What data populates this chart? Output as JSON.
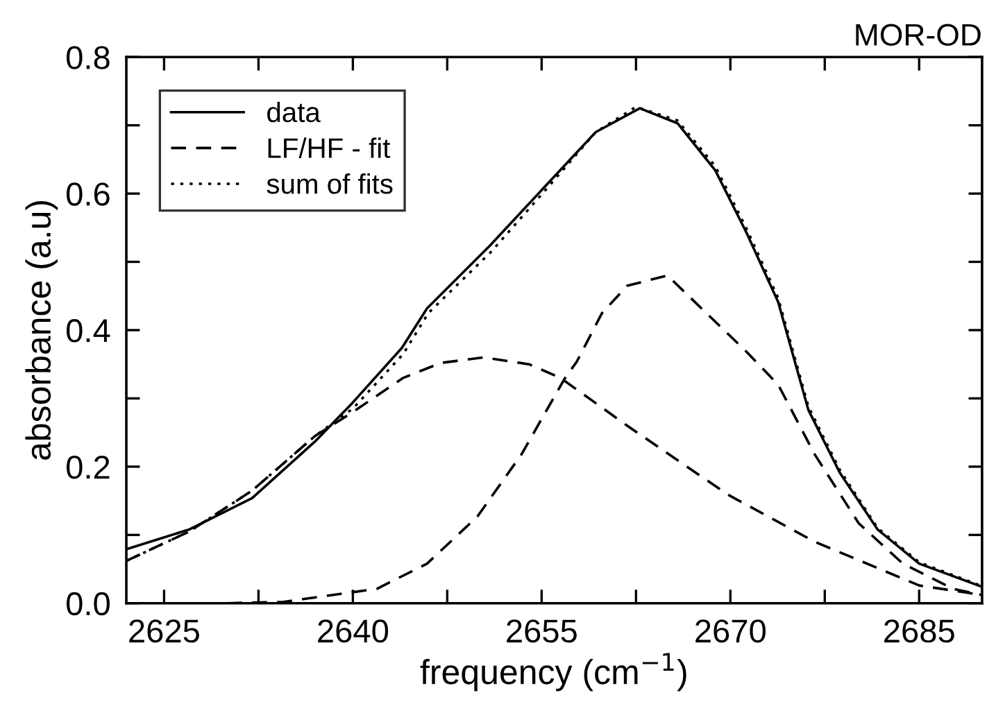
{
  "chart_data": {
    "type": "line",
    "title": "MOR-OD",
    "xlabel": "frequency (cm$^{−1}$)",
    "ylabel": "absorbance (a.u)",
    "xlim": [
      2622,
      2690
    ],
    "ylim": [
      0,
      0.8
    ],
    "xticks": [
      2625,
      {
        "value": 2632.5,
        "label": null
      },
      2640,
      {
        "value": 2647.5,
        "label": null
      },
      2655,
      {
        "value": 2662.5,
        "label": null
      },
      2670,
      {
        "value": 2677.5,
        "label": null
      },
      2685
    ],
    "yticks": [
      {
        "value": 0,
        "label": "0.0"
      },
      {
        "value": 0.1,
        "label": null
      },
      0.2,
      {
        "value": 0.3,
        "label": null
      },
      0.4,
      {
        "value": 0.5,
        "label": null
      },
      0.6,
      {
        "value": 0.7,
        "label": null
      },
      0.8
    ],
    "grid": false,
    "legend": "top left",
    "series": [
      {
        "name": "data",
        "color": "#000000",
        "line_style": "solid",
        "x": [
          2622,
          2627,
          2632,
          2637,
          2639.9,
          2643.9,
          2645.9,
          2650.9,
          2655.3,
          2659.3,
          2662.8,
          2665.8,
          2668.8,
          2671.3,
          2673.8,
          2676.2,
          2678.7,
          2681.7,
          2685,
          2690
        ],
        "values": [
          0.079,
          0.108,
          0.154,
          0.237,
          0.292,
          0.374,
          0.432,
          0.524,
          0.611,
          0.69,
          0.725,
          0.703,
          0.634,
          0.542,
          0.441,
          0.283,
          0.191,
          0.108,
          0.058,
          0.024
        ]
      },
      {
        "name": "LF/HF - fit",
        "color": "#000000",
        "line_style": "dashed",
        "x": [
          2622,
          2627,
          2632,
          2637,
          2640,
          2644,
          2647,
          2650.4,
          2654,
          2656.5,
          2661.8,
          2669.8,
          2676.7,
          2685,
          2690
        ],
        "values": [
          0.062,
          0.105,
          0.165,
          0.245,
          0.28,
          0.33,
          0.352,
          0.36,
          0.35,
          0.33,
          0.26,
          0.159,
          0.09,
          0.026,
          0.012
        ]
      },
      {
        "color": "#000000",
        "line_style": "dashed",
        "x": [
          2630,
          2634.5,
          2641.9,
          2645.9,
          2649.9,
          2653.4,
          2656.8,
          2657.8,
          2659.8,
          2661.8,
          2665,
          2668.2,
          2671.3,
          2673.8,
          2676.7,
          2680.2,
          2683.7,
          2687.7,
          2690
        ],
        "values": [
          0.0,
          0.002,
          0.021,
          0.058,
          0.127,
          0.218,
          0.328,
          0.354,
          0.425,
          0.465,
          0.48,
          0.423,
          0.368,
          0.32,
          0.218,
          0.117,
          0.058,
          0.021,
          0.012
        ]
      },
      {
        "name": "sum of fits",
        "color": "#000000",
        "line_style": "dotted",
        "x": [
          2622,
          2627,
          2632,
          2637,
          2640,
          2644,
          2646,
          2651,
          2655.3,
          2659.3,
          2662.5,
          2665.8,
          2668.8,
          2671.3,
          2673.8,
          2676.2,
          2678.7,
          2681.7,
          2685,
          2690
        ],
        "values": [
          0.062,
          0.105,
          0.165,
          0.245,
          0.285,
          0.365,
          0.425,
          0.515,
          0.605,
          0.69,
          0.727,
          0.707,
          0.64,
          0.548,
          0.447,
          0.288,
          0.195,
          0.11,
          0.06,
          0.025
        ]
      }
    ]
  }
}
